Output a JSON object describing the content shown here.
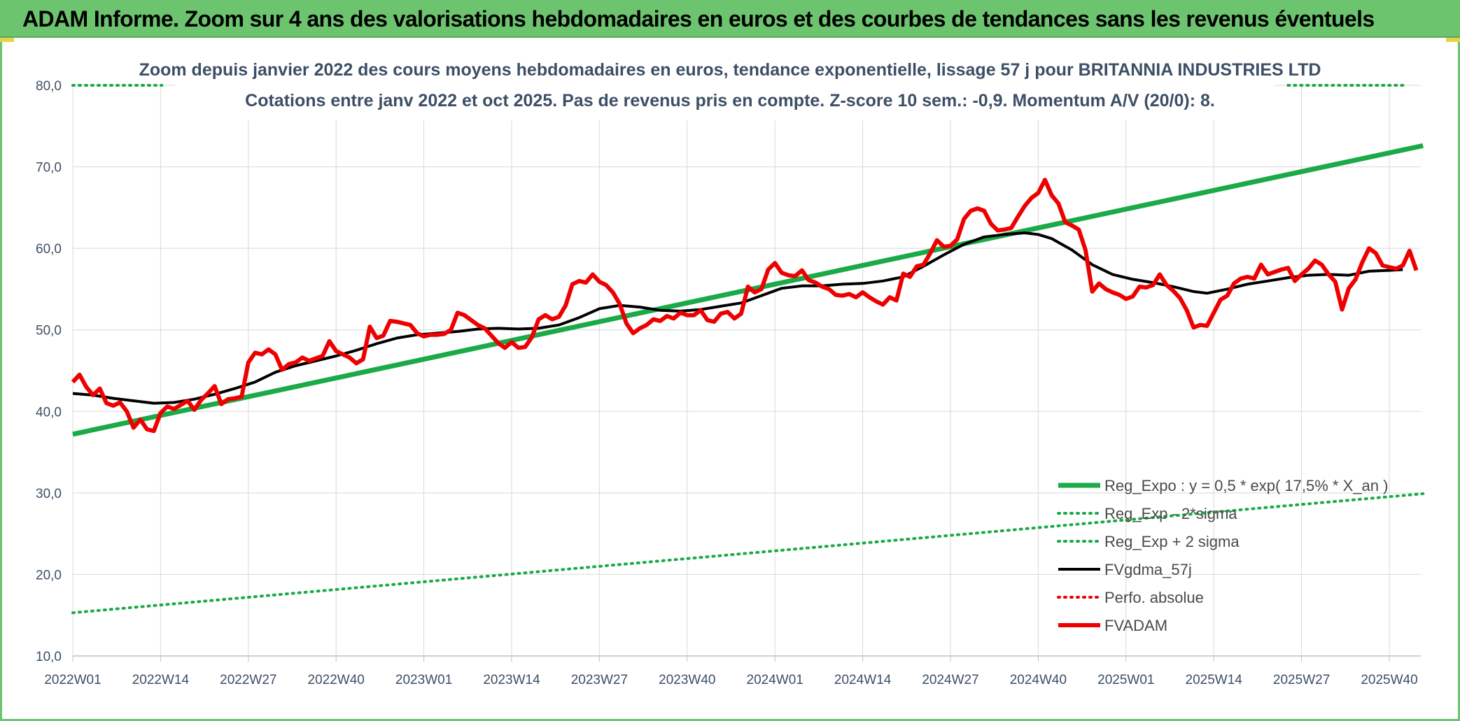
{
  "banner": {
    "title": "ADAM Informe. Zoom sur 4 ans des valorisations hebdomadaires en euros et des courbes de tendances sans les revenus éventuels"
  },
  "colors": {
    "banner": "#6cc46e",
    "reg_expo": "#1aaa47",
    "fvgdma": "#000000",
    "fvadam": "#ee0000",
    "perfo": "#ee0000",
    "grid": "#d9d9d9",
    "text": "#3d4f66"
  },
  "chart_data": {
    "type": "line",
    "title": "Zoom depuis janvier 2022 des cours moyens hebdomadaires en euros, tendance exponentielle, lissage 57 j pour BRITANNIA INDUSTRIES LTD",
    "subtitle": "Cotations entre janv 2022 et oct 2025. Pas de revenus pris en compte. Z-score 10 sem.: -0,9. Momentum A/V (20/0): 8.",
    "xlabel": "",
    "ylabel": "",
    "ylim": [
      10,
      80
    ],
    "yticks": [
      "10,0",
      "20,0",
      "30,0",
      "40,0",
      "50,0",
      "60,0",
      "70,0",
      "80,0"
    ],
    "xlim": [
      0,
      195
    ],
    "xticks": [
      {
        "x": 0,
        "label": "2022W01"
      },
      {
        "x": 13,
        "label": "2022W14"
      },
      {
        "x": 26,
        "label": "2022W27"
      },
      {
        "x": 39,
        "label": "2022W40"
      },
      {
        "x": 52,
        "label": "2023W01"
      },
      {
        "x": 65,
        "label": "2023W14"
      },
      {
        "x": 78,
        "label": "2023W27"
      },
      {
        "x": 91,
        "label": "2023W40"
      },
      {
        "x": 104,
        "label": "2024W01"
      },
      {
        "x": 117,
        "label": "2024W14"
      },
      {
        "x": 130,
        "label": "2024W27"
      },
      {
        "x": 143,
        "label": "2024W40"
      },
      {
        "x": 156,
        "label": "2025W01"
      },
      {
        "x": 169,
        "label": "2025W14"
      },
      {
        "x": 182,
        "label": "2025W27"
      },
      {
        "x": 195,
        "label": "2025W40"
      }
    ],
    "grid": true,
    "legend_position": "bottom-right",
    "series": [
      {
        "name": "Reg_Expo : y = 0,5 * exp( 17,5% *  X_an )",
        "style": "solid-thick",
        "color": "#1aaa47",
        "points": [
          [
            0,
            37.2
          ],
          [
            200,
            72.6
          ]
        ]
      },
      {
        "name": "Reg_Exp - 2*sigma",
        "style": "dotted",
        "color": "#1aaa47",
        "points": [
          [
            0,
            15.3
          ],
          [
            200,
            29.9
          ]
        ]
      },
      {
        "name": "Reg_Exp + 2 sigma",
        "style": "dotted",
        "color": "#1aaa47",
        "points": [
          [
            0,
            80.0
          ],
          [
            200,
            80.0
          ]
        ],
        "note": "above 80 except edges"
      },
      {
        "name": "FVgdma_57j",
        "style": "solid",
        "color": "#000000",
        "points": [
          [
            0,
            42.2
          ],
          [
            3,
            42.0
          ],
          [
            6,
            41.6
          ],
          [
            9,
            41.3
          ],
          [
            12,
            41.0
          ],
          [
            15,
            41.1
          ],
          [
            18,
            41.5
          ],
          [
            21,
            42.1
          ],
          [
            24,
            42.8
          ],
          [
            27,
            43.6
          ],
          [
            30,
            44.8
          ],
          [
            33,
            45.6
          ],
          [
            36,
            46.2
          ],
          [
            39,
            46.8
          ],
          [
            42,
            47.5
          ],
          [
            45,
            48.3
          ],
          [
            48,
            49.0
          ],
          [
            51,
            49.4
          ],
          [
            54,
            49.6
          ],
          [
            57,
            49.8
          ],
          [
            60,
            50.1
          ],
          [
            63,
            50.2
          ],
          [
            66,
            50.1
          ],
          [
            69,
            50.2
          ],
          [
            72,
            50.6
          ],
          [
            75,
            51.5
          ],
          [
            78,
            52.6
          ],
          [
            81,
            53.0
          ],
          [
            84,
            52.8
          ],
          [
            87,
            52.4
          ],
          [
            90,
            52.3
          ],
          [
            93,
            52.5
          ],
          [
            96,
            52.9
          ],
          [
            99,
            53.3
          ],
          [
            102,
            54.2
          ],
          [
            105,
            55.1
          ],
          [
            108,
            55.4
          ],
          [
            111,
            55.4
          ],
          [
            114,
            55.6
          ],
          [
            117,
            55.7
          ],
          [
            120,
            56.0
          ],
          [
            123,
            56.5
          ],
          [
            126,
            57.8
          ],
          [
            129,
            59.2
          ],
          [
            132,
            60.5
          ],
          [
            135,
            61.4
          ],
          [
            138,
            61.7
          ],
          [
            141,
            61.9
          ],
          [
            143,
            61.7
          ],
          [
            145,
            61.2
          ],
          [
            148,
            59.8
          ],
          [
            151,
            58.0
          ],
          [
            154,
            56.8
          ],
          [
            157,
            56.2
          ],
          [
            160,
            55.8
          ],
          [
            163,
            55.3
          ],
          [
            166,
            54.7
          ],
          [
            168,
            54.5
          ],
          [
            171,
            55.0
          ],
          [
            174,
            55.6
          ],
          [
            177,
            56.0
          ],
          [
            180,
            56.4
          ],
          [
            183,
            56.7
          ],
          [
            186,
            56.8
          ],
          [
            189,
            56.7
          ],
          [
            192,
            57.2
          ],
          [
            195,
            57.3
          ],
          [
            197,
            57.4
          ]
        ]
      },
      {
        "name": "Perfo. absolue",
        "style": "dotted",
        "color": "#ee0000",
        "points": []
      },
      {
        "name": "FVADAM",
        "style": "solid-thick",
        "color": "#ee0000",
        "points": [
          [
            0,
            43.6
          ],
          [
            1,
            44.5
          ],
          [
            2,
            43.0
          ],
          [
            3,
            42.0
          ],
          [
            4,
            42.8
          ],
          [
            5,
            41.0
          ],
          [
            6,
            40.7
          ],
          [
            7,
            41.1
          ],
          [
            8,
            40.0
          ],
          [
            9,
            38.0
          ],
          [
            10,
            39.0
          ],
          [
            11,
            37.8
          ],
          [
            12,
            37.6
          ],
          [
            13,
            39.8
          ],
          [
            14,
            40.6
          ],
          [
            15,
            40.3
          ],
          [
            16,
            40.8
          ],
          [
            17,
            41.3
          ],
          [
            18,
            40.2
          ],
          [
            19,
            41.4
          ],
          [
            20,
            42.2
          ],
          [
            21,
            43.1
          ],
          [
            22,
            40.9
          ],
          [
            23,
            41.5
          ],
          [
            24,
            41.6
          ],
          [
            25,
            41.8
          ],
          [
            26,
            46.0
          ],
          [
            27,
            47.2
          ],
          [
            28,
            47.0
          ],
          [
            29,
            47.6
          ],
          [
            30,
            47.0
          ],
          [
            31,
            45.1
          ],
          [
            32,
            45.8
          ],
          [
            33,
            46.0
          ],
          [
            34,
            46.6
          ],
          [
            35,
            46.2
          ],
          [
            36,
            46.5
          ],
          [
            37,
            46.8
          ],
          [
            38,
            48.6
          ],
          [
            39,
            47.4
          ],
          [
            40,
            47.0
          ],
          [
            41,
            46.6
          ],
          [
            42,
            45.9
          ],
          [
            43,
            46.4
          ],
          [
            44,
            50.4
          ],
          [
            45,
            49.0
          ],
          [
            46,
            49.3
          ],
          [
            47,
            51.1
          ],
          [
            48,
            51.0
          ],
          [
            49,
            50.8
          ],
          [
            50,
            50.6
          ],
          [
            51,
            49.6
          ],
          [
            52,
            49.2
          ],
          [
            53,
            49.4
          ],
          [
            54,
            49.4
          ],
          [
            55,
            49.5
          ],
          [
            56,
            50.0
          ],
          [
            57,
            52.1
          ],
          [
            58,
            51.8
          ],
          [
            59,
            51.2
          ],
          [
            60,
            50.6
          ],
          [
            61,
            50.2
          ],
          [
            62,
            49.3
          ],
          [
            63,
            48.4
          ],
          [
            64,
            47.8
          ],
          [
            65,
            48.5
          ],
          [
            66,
            47.8
          ],
          [
            67,
            47.9
          ],
          [
            68,
            49.1
          ],
          [
            69,
            51.3
          ],
          [
            70,
            51.8
          ],
          [
            71,
            51.3
          ],
          [
            72,
            51.6
          ],
          [
            73,
            53.0
          ],
          [
            74,
            55.6
          ],
          [
            75,
            56.0
          ],
          [
            76,
            55.8
          ],
          [
            77,
            56.8
          ],
          [
            78,
            55.9
          ],
          [
            79,
            55.5
          ],
          [
            80,
            54.6
          ],
          [
            81,
            53.2
          ],
          [
            82,
            50.8
          ],
          [
            83,
            49.6
          ],
          [
            84,
            50.2
          ],
          [
            85,
            50.6
          ],
          [
            86,
            51.3
          ],
          [
            87,
            51.1
          ],
          [
            88,
            51.7
          ],
          [
            89,
            51.4
          ],
          [
            90,
            52.1
          ],
          [
            91,
            51.8
          ],
          [
            92,
            51.8
          ],
          [
            93,
            52.4
          ],
          [
            94,
            51.2
          ],
          [
            95,
            51.0
          ],
          [
            96,
            52.0
          ],
          [
            97,
            52.2
          ],
          [
            98,
            51.4
          ],
          [
            99,
            52.0
          ],
          [
            100,
            55.3
          ],
          [
            101,
            54.6
          ],
          [
            102,
            55.0
          ],
          [
            103,
            57.4
          ],
          [
            104,
            58.2
          ],
          [
            105,
            57.0
          ],
          [
            106,
            56.7
          ],
          [
            107,
            56.6
          ],
          [
            108,
            57.3
          ],
          [
            109,
            56.1
          ],
          [
            110,
            55.8
          ],
          [
            111,
            55.3
          ],
          [
            112,
            55.0
          ],
          [
            113,
            54.3
          ],
          [
            114,
            54.2
          ],
          [
            115,
            54.4
          ],
          [
            116,
            54.0
          ],
          [
            117,
            54.6
          ],
          [
            118,
            54.0
          ],
          [
            119,
            53.5
          ],
          [
            120,
            53.1
          ],
          [
            121,
            54.0
          ],
          [
            122,
            53.6
          ],
          [
            123,
            56.9
          ],
          [
            124,
            56.5
          ],
          [
            125,
            57.8
          ],
          [
            126,
            58.0
          ],
          [
            127,
            59.4
          ],
          [
            128,
            61.0
          ],
          [
            129,
            60.2
          ],
          [
            130,
            60.3
          ],
          [
            131,
            61.1
          ],
          [
            132,
            63.6
          ],
          [
            133,
            64.6
          ],
          [
            134,
            64.9
          ],
          [
            135,
            64.6
          ],
          [
            136,
            63.0
          ],
          [
            137,
            62.2
          ],
          [
            138,
            62.3
          ],
          [
            139,
            62.5
          ],
          [
            140,
            63.9
          ],
          [
            141,
            65.2
          ],
          [
            142,
            66.2
          ],
          [
            143,
            66.8
          ],
          [
            144,
            68.4
          ],
          [
            145,
            66.5
          ],
          [
            146,
            65.5
          ],
          [
            147,
            63.2
          ],
          [
            148,
            62.8
          ],
          [
            149,
            62.3
          ],
          [
            150,
            59.8
          ],
          [
            151,
            54.7
          ],
          [
            152,
            55.7
          ],
          [
            153,
            55.0
          ],
          [
            154,
            54.6
          ],
          [
            155,
            54.3
          ],
          [
            156,
            53.8
          ],
          [
            157,
            54.1
          ],
          [
            158,
            55.3
          ],
          [
            159,
            55.2
          ],
          [
            160,
            55.5
          ],
          [
            161,
            56.8
          ],
          [
            162,
            55.5
          ],
          [
            163,
            54.8
          ],
          [
            164,
            53.9
          ],
          [
            165,
            52.4
          ],
          [
            166,
            50.3
          ],
          [
            167,
            50.6
          ],
          [
            168,
            50.5
          ],
          [
            169,
            52.1
          ],
          [
            170,
            53.7
          ],
          [
            171,
            54.2
          ],
          [
            172,
            55.7
          ],
          [
            173,
            56.3
          ],
          [
            174,
            56.5
          ],
          [
            175,
            56.3
          ],
          [
            176,
            58.0
          ],
          [
            177,
            56.8
          ],
          [
            178,
            57.1
          ],
          [
            179,
            57.4
          ],
          [
            180,
            57.6
          ],
          [
            181,
            56.0
          ],
          [
            182,
            56.8
          ],
          [
            183,
            57.5
          ],
          [
            184,
            58.5
          ],
          [
            185,
            58.0
          ],
          [
            186,
            56.8
          ],
          [
            187,
            55.9
          ],
          [
            188,
            52.5
          ],
          [
            189,
            55.1
          ],
          [
            190,
            56.2
          ],
          [
            191,
            58.3
          ],
          [
            192,
            60.0
          ],
          [
            193,
            59.4
          ],
          [
            194,
            57.9
          ],
          [
            195,
            57.7
          ],
          [
            196,
            57.5
          ],
          [
            197,
            57.9
          ],
          [
            198,
            59.7
          ],
          [
            199,
            57.3
          ]
        ]
      }
    ]
  }
}
